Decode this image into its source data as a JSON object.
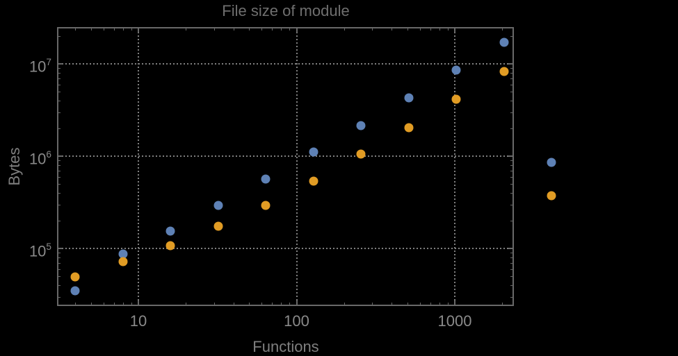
{
  "chart": {
    "title": "File size of module",
    "xlabel": "Functions",
    "ylabel": "Bytes"
  },
  "colors": {
    "background": "#000000",
    "title": "#6f6f6f",
    "axis_label": "#7f7f7f",
    "tick_label": "#8a8a8a",
    "frame": "#696969",
    "grid": "#808080",
    "series_blue": "#5e81b5",
    "series_orange": "#e19c24"
  },
  "chart_data": {
    "type": "scatter",
    "title": "File size of module",
    "xlabel": "Functions",
    "ylabel": "Bytes",
    "x_scale": "log",
    "y_scale": "log",
    "grid": "dotted",
    "legend": "none",
    "marker": "circle",
    "x_range": [
      3.06,
      2363
    ],
    "y_range": [
      23800,
      25000000
    ],
    "x_ticks": {
      "values": [
        10,
        100,
        1000
      ],
      "labels": [
        "10",
        "100",
        "1000"
      ]
    },
    "y_ticks": {
      "values": [
        100000,
        1000000,
        10000000
      ],
      "labels": [
        {
          "base": "10",
          "exp": "5"
        },
        {
          "base": "10",
          "exp": "6"
        },
        {
          "base": "10",
          "exp": "7"
        }
      ]
    },
    "x": [
      4,
      8,
      16,
      32,
      64,
      128,
      256,
      512,
      1024,
      2048,
      4096
    ],
    "series": [
      {
        "name": "blue",
        "color": "#5e81b5",
        "values": [
          35000,
          87000,
          155000,
          295000,
          560000,
          1100000,
          2150000,
          4300000,
          8500000,
          17000000,
          860000
        ]
      },
      {
        "name": "orange",
        "color": "#e19c24",
        "values": [
          49000,
          72000,
          108000,
          175000,
          295000,
          540000,
          1050000,
          2050000,
          4150000,
          8200000,
          370000
        ]
      }
    ]
  }
}
